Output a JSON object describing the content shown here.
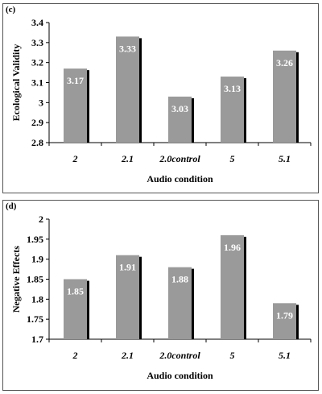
{
  "chart_data": [
    {
      "panel": "(c)",
      "type": "bar",
      "categories": [
        "2",
        "2.1",
        "2.0control",
        "5",
        "5.1"
      ],
      "values": [
        3.17,
        3.33,
        3.03,
        3.13,
        3.26
      ],
      "data_labels": [
        "3.17",
        "3.33",
        "3.03",
        "3.13",
        "3.26"
      ],
      "xlabel": "Audio condition",
      "ylabel": "Ecological Validity",
      "ylim": [
        2.8,
        3.4
      ],
      "yticks": [
        "2.8",
        "2.9",
        "3",
        "3.1",
        "3.2",
        "3.3",
        "3.4"
      ],
      "grid": false,
      "bar_color": "#9a9a9a",
      "shadow_color": "#000000"
    },
    {
      "panel": "(d)",
      "type": "bar",
      "categories": [
        "2",
        "2.1",
        "2.0control",
        "5",
        "5.1"
      ],
      "values": [
        1.85,
        1.91,
        1.88,
        1.96,
        1.79
      ],
      "data_labels": [
        "1.85",
        "1.91",
        "1.88",
        "1.96",
        "1.79"
      ],
      "xlabel": "Audio condition",
      "ylabel": "Negative Effects",
      "ylim": [
        1.7,
        2.0
      ],
      "yticks": [
        "1.7",
        "1.75",
        "1.8",
        "1.85",
        "1.9",
        "1.95",
        "2"
      ],
      "grid": false,
      "bar_color": "#9a9a9a",
      "shadow_color": "#000000"
    }
  ]
}
